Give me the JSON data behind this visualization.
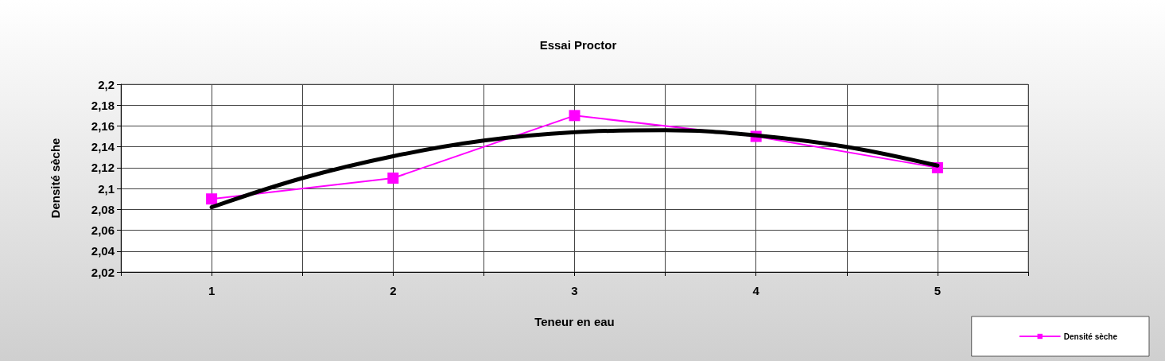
{
  "chart_data": {
    "type": "line",
    "title": "Essai Proctor",
    "xlabel": "Teneur en eau",
    "ylabel": "Densité sèche",
    "x": [
      1,
      2,
      3,
      4,
      5
    ],
    "xlim": [
      0.5,
      5.5
    ],
    "xticks": [
      {
        "value": 0.5,
        "label": null
      },
      1,
      {
        "value": 1.5,
        "label": null
      },
      2,
      {
        "value": 2.5,
        "label": null
      },
      3,
      {
        "value": 3.5,
        "label": null
      },
      4,
      {
        "value": 4.5,
        "label": null
      },
      5,
      {
        "value": 5.5,
        "label": null
      }
    ],
    "ylim": [
      2.02,
      2.2
    ],
    "yticks": [
      {
        "value": 2.02,
        "label": "2,02"
      },
      {
        "value": 2.04,
        "label": "2,04"
      },
      {
        "value": 2.06,
        "label": "2,06"
      },
      {
        "value": 2.08,
        "label": "2,08"
      },
      {
        "value": 2.1,
        "label": "2,1"
      },
      {
        "value": 2.12,
        "label": "2,12"
      },
      {
        "value": 2.14,
        "label": "2,14"
      },
      {
        "value": 2.16,
        "label": "2,16"
      },
      {
        "value": 2.18,
        "label": "2,18"
      },
      {
        "value": 2.2,
        "label": "2,2"
      }
    ],
    "series": [
      {
        "name": "Densité sèche",
        "color": "#ff00ff",
        "values": [
          2.09,
          2.11,
          2.17,
          2.15,
          2.12
        ]
      },
      {
        "type": "line",
        "color": "#000000",
        "marker": "none",
        "x": [
          1,
          1.5,
          2,
          2.5,
          3,
          3.5,
          4,
          4.5,
          5
        ],
        "values": [
          2.082,
          2.11,
          2.131,
          2.146,
          2.154,
          2.156,
          2.151,
          2.14,
          2.122
        ]
      }
    ],
    "marker": "square",
    "line_style": "solid",
    "grid": true,
    "legend": "bottom right"
  }
}
